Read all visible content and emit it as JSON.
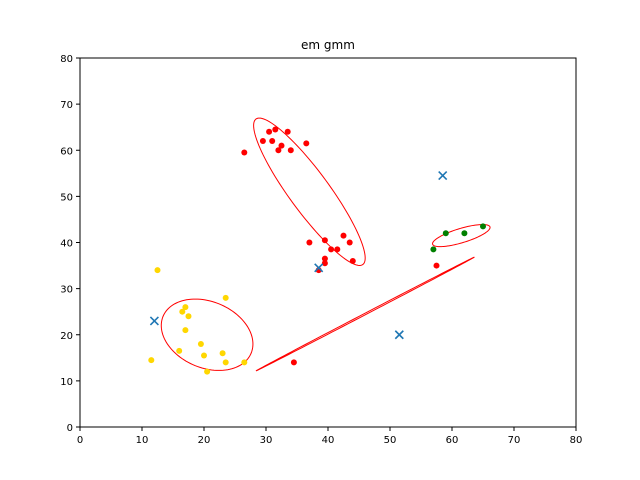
{
  "chart_data": {
    "type": "scatter",
    "title": "em gmm",
    "xlabel": "",
    "ylabel": "",
    "xlim": [
      0,
      80
    ],
    "ylim": [
      0,
      80
    ],
    "xticks": [
      0,
      10,
      20,
      30,
      40,
      50,
      60,
      70,
      80
    ],
    "yticks": [
      0,
      10,
      20,
      30,
      40,
      50,
      60,
      70,
      80
    ],
    "grid": false,
    "series": [
      {
        "color": "#ff0000",
        "points": [
          [
            26.5,
            59.5
          ],
          [
            29.5,
            62.0
          ],
          [
            30.5,
            64.0
          ],
          [
            31.0,
            62.0
          ],
          [
            31.5,
            64.5
          ],
          [
            32.0,
            60.0
          ],
          [
            32.5,
            61.0
          ],
          [
            33.5,
            64.0
          ],
          [
            34.0,
            60.0
          ],
          [
            36.5,
            61.5
          ],
          [
            37.0,
            40.0
          ],
          [
            38.5,
            34.0
          ],
          [
            39.5,
            40.5
          ],
          [
            39.5,
            36.5
          ],
          [
            39.5,
            35.5
          ],
          [
            40.5,
            38.5
          ],
          [
            41.5,
            38.5
          ],
          [
            42.5,
            41.5
          ],
          [
            43.5,
            40.0
          ],
          [
            44.0,
            36.0
          ],
          [
            57.5,
            35.0
          ],
          [
            34.5,
            14.0
          ]
        ]
      },
      {
        "color": "#ffd700",
        "points": [
          [
            11.5,
            14.5
          ],
          [
            12.5,
            34.0
          ],
          [
            16.0,
            16.5
          ],
          [
            16.5,
            25.0
          ],
          [
            17.0,
            26.0
          ],
          [
            17.0,
            21.0
          ],
          [
            17.5,
            24.0
          ],
          [
            19.5,
            18.0
          ],
          [
            20.0,
            15.5
          ],
          [
            20.5,
            12.0
          ],
          [
            23.0,
            16.0
          ],
          [
            23.5,
            28.0
          ],
          [
            23.5,
            14.0
          ],
          [
            26.5,
            14.0
          ]
        ]
      },
      {
        "color": "#008000",
        "points": [
          [
            57.0,
            38.5
          ],
          [
            59.0,
            42.0
          ],
          [
            62.0,
            42.0
          ],
          [
            65.0,
            43.5
          ]
        ]
      }
    ],
    "centroids": {
      "color": "#1f77b4",
      "marker": "x",
      "points": [
        [
          12.0,
          23.0
        ],
        [
          38.5,
          34.5
        ],
        [
          58.5,
          54.5
        ],
        [
          51.5,
          20.0
        ]
      ]
    },
    "ellipses": {
      "color": "#ff0000",
      "items": [
        {
          "center": [
            20.5,
            20.0
          ],
          "rx": 6.5,
          "ry": 8.5,
          "angle_deg": 40
        },
        {
          "center": [
            37.0,
            51.0
          ],
          "rx": 3.5,
          "ry": 18.0,
          "angle_deg": 28
        },
        {
          "center": [
            61.5,
            41.5
          ],
          "rx": 5.0,
          "ry": 1.5,
          "angle_deg": 23
        },
        {
          "center": [
            46.0,
            24.5
          ],
          "rx": 21.5,
          "ry": 0.15,
          "angle_deg": 35
        }
      ]
    }
  }
}
